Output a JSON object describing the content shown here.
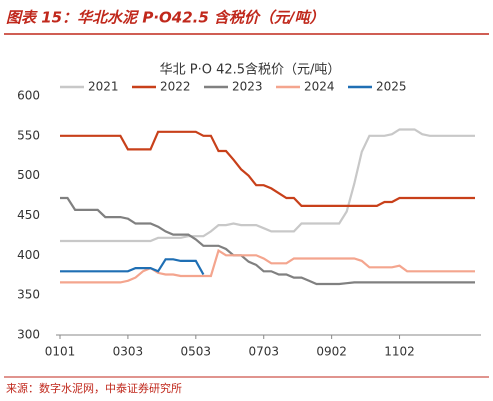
{
  "header": {
    "title": "图表 15：华北水泥 P·O42.5 含税价（元/吨）"
  },
  "chart_data": {
    "type": "line",
    "title": "华北 P·O 42.5含税价（元/吨）",
    "categories": [
      "0101",
      null,
      null,
      null,
      null,
      null,
      null,
      null,
      null,
      "0303",
      null,
      null,
      null,
      null,
      null,
      null,
      null,
      null,
      "0503",
      null,
      null,
      null,
      null,
      null,
      null,
      null,
      null,
      "0703",
      null,
      null,
      null,
      null,
      null,
      null,
      null,
      null,
      "0902",
      null,
      null,
      null,
      null,
      null,
      null,
      null,
      null,
      "1102",
      null,
      null,
      null,
      null,
      null,
      null,
      null,
      null,
      null,
      null
    ],
    "series": [
      {
        "name": "2021",
        "color": "#c8c8c8",
        "values": [
          418,
          418,
          418,
          418,
          418,
          418,
          418,
          418,
          418,
          418,
          418,
          418,
          418,
          422,
          422,
          422,
          422,
          424,
          424,
          424,
          430,
          438,
          438,
          440,
          438,
          438,
          438,
          434,
          430,
          430,
          430,
          430,
          440,
          440,
          440,
          440,
          440,
          440,
          455,
          490,
          530,
          550,
          550,
          550,
          552,
          558,
          558,
          558,
          552,
          550,
          550,
          550,
          550,
          550,
          550,
          550
        ]
      },
      {
        "name": "2022",
        "color": "#c8401a",
        "values": [
          550,
          550,
          550,
          550,
          550,
          550,
          550,
          550,
          550,
          533,
          533,
          533,
          533,
          555,
          555,
          555,
          555,
          555,
          555,
          550,
          550,
          531,
          531,
          520,
          508,
          500,
          488,
          488,
          484,
          478,
          472,
          472,
          462,
          462,
          462,
          462,
          462,
          462,
          462,
          462,
          462,
          462,
          462,
          467,
          467,
          472,
          472,
          472,
          472,
          472,
          472,
          472,
          472,
          472,
          472,
          472
        ]
      },
      {
        "name": "2023",
        "color": "#808080",
        "values": [
          472,
          472,
          457,
          457,
          457,
          457,
          448,
          448,
          448,
          446,
          440,
          440,
          440,
          436,
          430,
          426,
          426,
          426,
          420,
          412,
          412,
          412,
          408,
          400,
          400,
          392,
          388,
          380,
          380,
          376,
          376,
          372,
          372,
          368,
          364,
          364,
          364,
          364,
          365,
          366,
          366,
          366,
          366,
          366,
          366,
          366,
          366,
          366,
          366,
          366,
          366,
          366,
          366,
          366,
          366,
          366
        ]
      },
      {
        "name": "2024",
        "color": "#f4a58e",
        "values": [
          366,
          366,
          366,
          366,
          366,
          366,
          366,
          366,
          366,
          368,
          372,
          380,
          384,
          378,
          376,
          376,
          374,
          374,
          374,
          374,
          374,
          406,
          400,
          400,
          400,
          400,
          400,
          396,
          390,
          390,
          390,
          396,
          396,
          396,
          396,
          396,
          396,
          396,
          396,
          396,
          393,
          385,
          385,
          385,
          385,
          387,
          380,
          380,
          380,
          380,
          380,
          380,
          380,
          380,
          380,
          380
        ]
      },
      {
        "name": "2025",
        "color": "#1f6fb4",
        "values": [
          380,
          380,
          380,
          380,
          380,
          380,
          380,
          380,
          380,
          380,
          384,
          384,
          384,
          380,
          395,
          395,
          393,
          393,
          393,
          376,
          null,
          null,
          null,
          null,
          null,
          null,
          null,
          null,
          null,
          null,
          null,
          null,
          null,
          null,
          null,
          null,
          null,
          null,
          null,
          null,
          null,
          null,
          null,
          null,
          null,
          null,
          null,
          null,
          null,
          null,
          null,
          null,
          null,
          null,
          null,
          null
        ]
      }
    ],
    "ylim": [
      300,
      600
    ],
    "yticks": [
      300,
      350,
      400,
      450,
      500,
      550,
      600
    ],
    "grid": false
  },
  "footer": {
    "source": "来源：数字水泥网，中泰证券研究所"
  }
}
